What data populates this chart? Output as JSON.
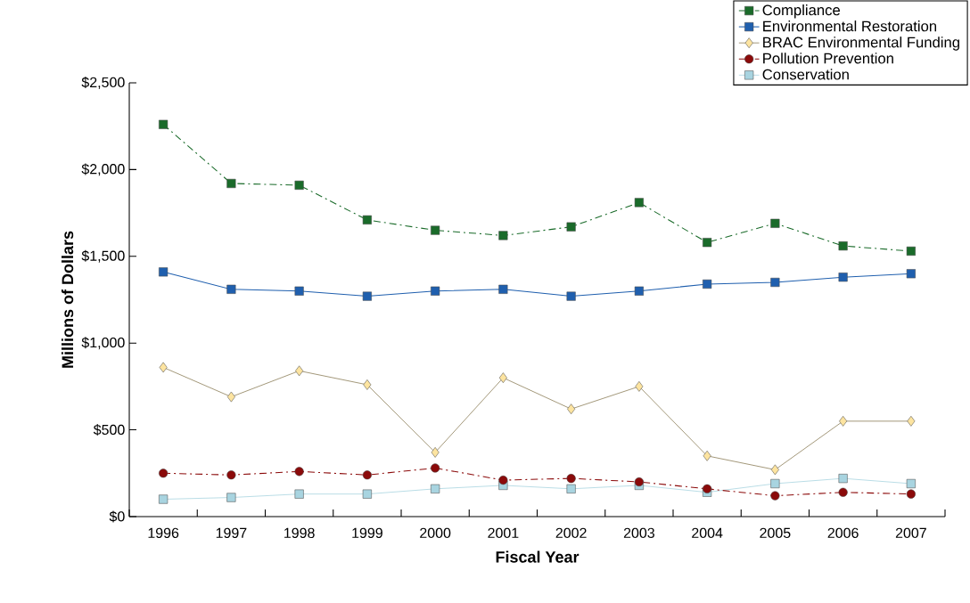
{
  "chart_data": {
    "type": "line",
    "xlabel": "Fiscal Year",
    "ylabel": "Millions of Dollars",
    "categories": [
      "1996",
      "1997",
      "1998",
      "1999",
      "2000",
      "2001",
      "2002",
      "2003",
      "2004",
      "2005",
      "2006",
      "2007"
    ],
    "series": [
      {
        "name": "Compliance",
        "color": "#1a6b2a",
        "marker": "square",
        "line_style": "dashed",
        "values": [
          2260,
          1920,
          1910,
          1710,
          1650,
          1620,
          1670,
          1810,
          1580,
          1690,
          1560,
          1530
        ]
      },
      {
        "name": "Environmental Restoration",
        "color": "#1f5fae",
        "marker": "square",
        "line_style": "solid",
        "values": [
          1410,
          1310,
          1300,
          1270,
          1300,
          1310,
          1270,
          1300,
          1340,
          1350,
          1380,
          1400
        ]
      },
      {
        "name": "BRAC Environmental Funding",
        "color": "#fde4a0",
        "marker": "diamond",
        "line_style": "solid",
        "values": [
          860,
          690,
          840,
          760,
          370,
          800,
          620,
          750,
          350,
          270,
          550,
          550
        ]
      },
      {
        "name": "Pollution Prevention",
        "color": "#8b0a0a",
        "marker": "circle",
        "line_style": "dashed",
        "values": [
          250,
          240,
          260,
          240,
          280,
          210,
          220,
          200,
          160,
          120,
          140,
          130
        ]
      },
      {
        "name": "Conservation",
        "color": "#a8d4e0",
        "marker": "square",
        "line_style": "solid",
        "values": [
          100,
          110,
          130,
          130,
          160,
          180,
          160,
          180,
          140,
          190,
          220,
          190
        ]
      }
    ],
    "ylim": [
      0,
      2500
    ],
    "yticks": [
      {
        "value": 0,
        "label": "$0"
      },
      {
        "value": 500,
        "label": "$500"
      },
      {
        "value": 1000,
        "label": "$1,000"
      },
      {
        "value": 1500,
        "label": "$1,500"
      },
      {
        "value": 2000,
        "label": "$2,000"
      },
      {
        "value": 2500,
        "label": "$2,500"
      }
    ],
    "grid": false,
    "legend": "top right"
  }
}
